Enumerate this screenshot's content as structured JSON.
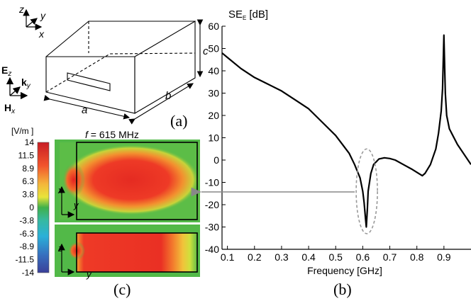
{
  "panel_a": {
    "label": "(a)",
    "axes_top": {
      "z": "z",
      "y": "y",
      "x": "x"
    },
    "field": {
      "e": "E",
      "e_sub": "z",
      "k": "k",
      "k_sub": "y",
      "h": "H",
      "h_sub": "x"
    },
    "dims": {
      "a": "a",
      "b": "b",
      "c": "c"
    }
  },
  "panel_b": {
    "label": "(b)",
    "ylabel_main": "SE",
    "ylabel_sub": "E",
    "ylabel_unit": "[dB]",
    "xlabel": "Frequency [GHz]"
  },
  "panel_c": {
    "label": "(c)",
    "title_f": "f",
    "title_rest": " = 615 MHz",
    "colorbar_unit": "[V/m ]",
    "colorbar_ticks": [
      "14",
      "11.5",
      "8.9",
      "6.3",
      "3.8",
      "0",
      "-3.8",
      "-6.3",
      "-8.9",
      "-11.5",
      "-14"
    ],
    "top_axes": {
      "v": "x",
      "h": "y"
    },
    "bottom_axes": {
      "v": "z",
      "h": "y"
    }
  },
  "chart_data": {
    "type": "line",
    "xlim": [
      0.08,
      1.0
    ],
    "ylim": [
      -40,
      60
    ],
    "xticks": [
      0.1,
      0.2,
      0.3,
      0.4,
      0.5,
      0.6,
      0.7,
      0.8,
      0.9
    ],
    "yticks": [
      -40,
      -30,
      -20,
      -10,
      0,
      10,
      20,
      30,
      40,
      50,
      60
    ],
    "series": [
      {
        "x": [
          0.08,
          0.1,
          0.15,
          0.2,
          0.25,
          0.3,
          0.35,
          0.4,
          0.45,
          0.5,
          0.55,
          0.57,
          0.59,
          0.6,
          0.605,
          0.61,
          0.613,
          0.617,
          0.62,
          0.63,
          0.64,
          0.66,
          0.68,
          0.7,
          0.72,
          0.75,
          0.78,
          0.8,
          0.82,
          0.83,
          0.85,
          0.87,
          0.88,
          0.89,
          0.895,
          0.9,
          0.905,
          0.91,
          0.92,
          0.95,
          1.0
        ],
        "y": [
          48,
          46,
          41,
          37,
          34,
          31,
          27,
          23,
          17,
          11,
          3,
          -2,
          -8,
          -14,
          -19,
          -26,
          -30,
          -22,
          -14,
          -6,
          -2,
          0.5,
          1,
          0.7,
          0,
          -2,
          -4,
          -5.5,
          -7,
          -6,
          -2,
          5,
          12,
          22,
          32,
          56,
          30,
          20,
          14,
          7,
          -2
        ]
      }
    ],
    "annotation": {
      "x": 0.615,
      "y_range": [
        -33,
        5
      ]
    }
  }
}
